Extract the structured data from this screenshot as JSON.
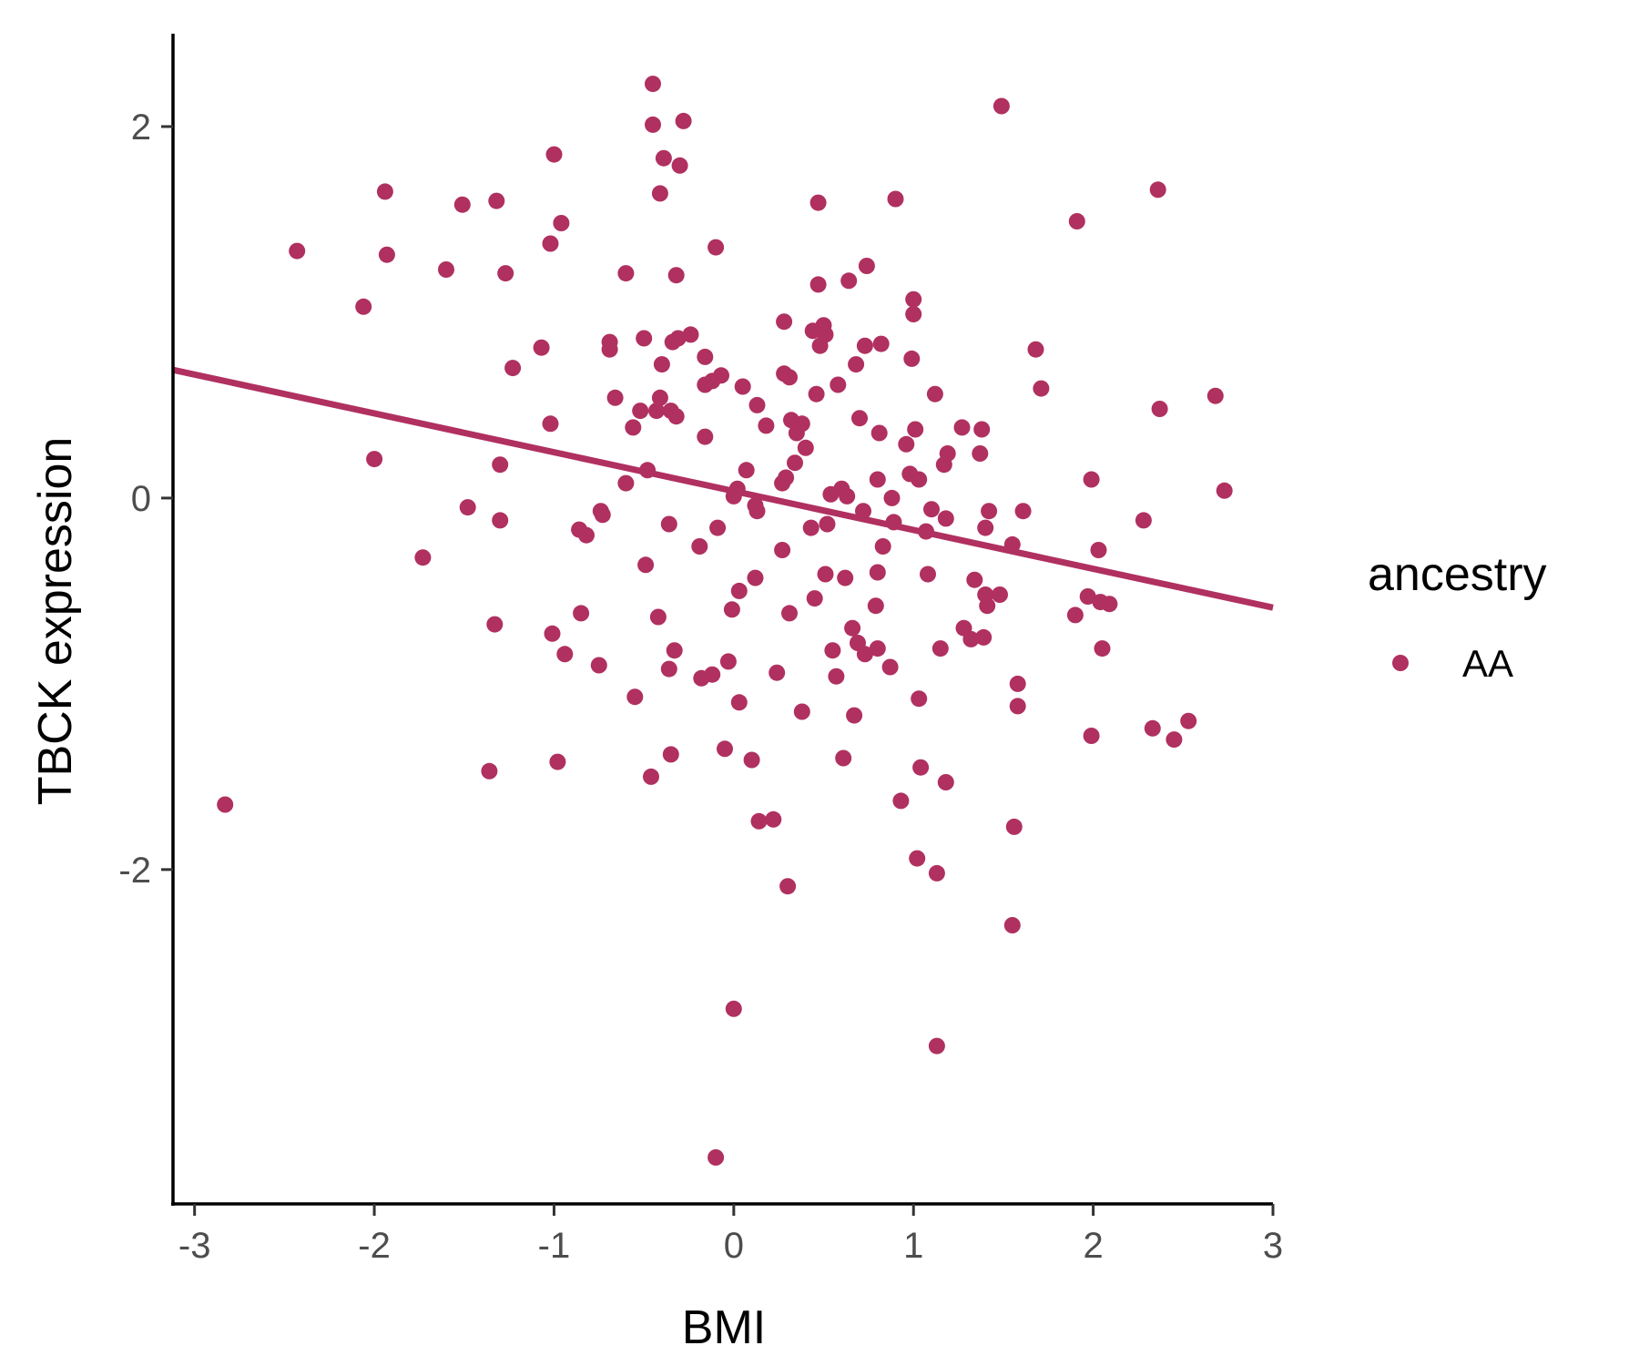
{
  "chart_data": {
    "type": "scatter",
    "xlabel": "BMI",
    "ylabel": "TBCK expression",
    "xlim": [
      -3.12,
      3.0
    ],
    "ylim": [
      -3.8,
      2.5
    ],
    "x_ticks": [
      -3,
      -2,
      -1,
      0,
      1,
      2,
      3
    ],
    "x_tick_labels": [
      "-3",
      "-2",
      "-1",
      "0",
      "1",
      "2",
      "3"
    ],
    "y_ticks": [
      -2,
      0,
      2
    ],
    "y_tick_labels": [
      "-2",
      "0",
      "2"
    ],
    "grid": false,
    "legend_position": "right",
    "point_color": "#b03060",
    "series": [
      {
        "name": "AA",
        "color": "#b03060",
        "points": [
          [
            -2.83,
            -1.65
          ],
          [
            -2.43,
            1.33
          ],
          [
            -2.06,
            1.03
          ],
          [
            -2.0,
            0.21
          ],
          [
            -1.94,
            1.65
          ],
          [
            -1.93,
            1.31
          ],
          [
            -1.73,
            -0.32
          ],
          [
            -1.6,
            1.23
          ],
          [
            -1.51,
            1.58
          ],
          [
            -1.48,
            -0.05
          ],
          [
            -1.36,
            -1.47
          ],
          [
            -1.33,
            -0.68
          ],
          [
            -1.32,
            1.6
          ],
          [
            -1.3,
            0.18
          ],
          [
            -1.3,
            -0.12
          ],
          [
            -1.27,
            1.21
          ],
          [
            -1.23,
            0.7
          ],
          [
            -1.07,
            0.81
          ],
          [
            -1.02,
            1.37
          ],
          [
            -1.02,
            0.4
          ],
          [
            -1.01,
            -0.73
          ],
          [
            -1.0,
            1.85
          ],
          [
            -0.98,
            -1.42
          ],
          [
            -0.96,
            1.48
          ],
          [
            -0.94,
            -0.84
          ],
          [
            -0.86,
            -0.17
          ],
          [
            -0.85,
            -0.62
          ],
          [
            -0.82,
            -0.2
          ],
          [
            -0.75,
            -0.9
          ],
          [
            -0.74,
            -0.07
          ],
          [
            -0.73,
            -0.09
          ],
          [
            -0.69,
            0.8
          ],
          [
            -0.69,
            0.84
          ],
          [
            -0.66,
            0.54
          ],
          [
            -0.6,
            1.21
          ],
          [
            -0.6,
            0.08
          ],
          [
            -0.56,
            0.38
          ],
          [
            -0.55,
            -1.07
          ],
          [
            -0.52,
            0.47
          ],
          [
            -0.5,
            0.86
          ],
          [
            -0.49,
            -0.36
          ],
          [
            -0.48,
            0.15
          ],
          [
            -0.46,
            -1.5
          ],
          [
            -0.45,
            2.23
          ],
          [
            -0.45,
            2.01
          ],
          [
            -0.43,
            0.47
          ],
          [
            -0.42,
            -0.64
          ],
          [
            -0.41,
            1.64
          ],
          [
            -0.41,
            0.54
          ],
          [
            -0.4,
            0.72
          ],
          [
            -0.39,
            1.83
          ],
          [
            -0.36,
            -0.14
          ],
          [
            -0.36,
            -0.92
          ],
          [
            -0.35,
            0.47
          ],
          [
            -0.35,
            -1.38
          ],
          [
            -0.34,
            0.84
          ],
          [
            -0.33,
            -0.82
          ],
          [
            -0.32,
            1.2
          ],
          [
            -0.32,
            0.44
          ],
          [
            -0.31,
            0.86
          ],
          [
            -0.3,
            1.79
          ],
          [
            -0.28,
            2.03
          ],
          [
            -0.24,
            0.88
          ],
          [
            -0.19,
            -0.26
          ],
          [
            -0.18,
            -0.97
          ],
          [
            -0.16,
            0.76
          ],
          [
            -0.16,
            0.61
          ],
          [
            -0.16,
            0.33
          ],
          [
            -0.12,
            0.63
          ],
          [
            -0.12,
            -0.95
          ],
          [
            -0.1,
            -3.55
          ],
          [
            -0.1,
            1.35
          ],
          [
            -0.09,
            -0.16
          ],
          [
            -0.07,
            0.66
          ],
          [
            -0.05,
            -1.35
          ],
          [
            -0.03,
            -0.88
          ],
          [
            -0.01,
            -0.6
          ],
          [
            -0.0,
            -2.75
          ],
          [
            0.0,
            0.01
          ],
          [
            0.02,
            0.05
          ],
          [
            0.03,
            -0.5
          ],
          [
            0.03,
            -1.1
          ],
          [
            0.05,
            0.6
          ],
          [
            0.07,
            0.15
          ],
          [
            0.1,
            -1.41
          ],
          [
            0.12,
            -0.04
          ],
          [
            0.12,
            -0.43
          ],
          [
            0.13,
            0.5
          ],
          [
            0.13,
            -0.07
          ],
          [
            0.14,
            -1.74
          ],
          [
            0.18,
            0.39
          ],
          [
            0.22,
            -1.73
          ],
          [
            0.24,
            -0.94
          ],
          [
            0.27,
            -0.28
          ],
          [
            0.27,
            0.08
          ],
          [
            0.28,
            0.67
          ],
          [
            0.28,
            0.95
          ],
          [
            0.29,
            0.11
          ],
          [
            0.3,
            -2.09
          ],
          [
            0.31,
            0.65
          ],
          [
            0.31,
            -0.62
          ],
          [
            0.32,
            0.42
          ],
          [
            0.34,
            0.19
          ],
          [
            0.35,
            0.35
          ],
          [
            0.38,
            0.4
          ],
          [
            0.38,
            -1.15
          ],
          [
            0.4,
            0.27
          ],
          [
            0.43,
            -0.16
          ],
          [
            0.44,
            0.9
          ],
          [
            0.45,
            -0.54
          ],
          [
            0.46,
            0.56
          ],
          [
            0.47,
            1.15
          ],
          [
            0.47,
            1.59
          ],
          [
            0.48,
            0.82
          ],
          [
            0.5,
            0.93
          ],
          [
            0.51,
            -0.41
          ],
          [
            0.51,
            0.88
          ],
          [
            0.52,
            -0.14
          ],
          [
            0.54,
            0.02
          ],
          [
            0.55,
            -0.82
          ],
          [
            0.57,
            -0.96
          ],
          [
            0.58,
            0.61
          ],
          [
            0.6,
            0.05
          ],
          [
            0.61,
            -1.4
          ],
          [
            0.62,
            -0.43
          ],
          [
            0.63,
            0.01
          ],
          [
            0.64,
            1.17
          ],
          [
            0.66,
            -0.7
          ],
          [
            0.67,
            -1.17
          ],
          [
            0.68,
            0.72
          ],
          [
            0.69,
            -0.78
          ],
          [
            0.7,
            0.43
          ],
          [
            0.72,
            -0.07
          ],
          [
            0.73,
            0.82
          ],
          [
            0.73,
            -0.84
          ],
          [
            0.74,
            1.25
          ],
          [
            0.79,
            -0.58
          ],
          [
            0.8,
            -0.81
          ],
          [
            0.8,
            -0.4
          ],
          [
            0.8,
            0.1
          ],
          [
            0.81,
            0.35
          ],
          [
            0.82,
            0.83
          ],
          [
            0.83,
            -0.26
          ],
          [
            0.87,
            -0.91
          ],
          [
            0.88,
            0.0
          ],
          [
            0.89,
            -0.13
          ],
          [
            0.9,
            1.61
          ],
          [
            0.93,
            -1.63
          ],
          [
            0.96,
            0.29
          ],
          [
            0.98,
            0.13
          ],
          [
            0.99,
            0.75
          ],
          [
            1.0,
            0.99
          ],
          [
            1.0,
            1.07
          ],
          [
            1.01,
            0.37
          ],
          [
            1.02,
            -1.94
          ],
          [
            1.03,
            0.1
          ],
          [
            1.03,
            -1.08
          ],
          [
            1.04,
            -1.45
          ],
          [
            1.07,
            -0.18
          ],
          [
            1.08,
            -0.41
          ],
          [
            1.1,
            -0.06
          ],
          [
            1.12,
            0.56
          ],
          [
            1.13,
            -2.95
          ],
          [
            1.13,
            -2.02
          ],
          [
            1.15,
            -0.81
          ],
          [
            1.17,
            0.18
          ],
          [
            1.18,
            -0.11
          ],
          [
            1.18,
            -1.53
          ],
          [
            1.19,
            0.24
          ],
          [
            1.27,
            0.38
          ],
          [
            1.28,
            -0.7
          ],
          [
            1.32,
            -0.76
          ],
          [
            1.34,
            -0.44
          ],
          [
            1.37,
            0.24
          ],
          [
            1.38,
            0.37
          ],
          [
            1.39,
            -0.75
          ],
          [
            1.4,
            -0.16
          ],
          [
            1.4,
            -0.52
          ],
          [
            1.41,
            -0.58
          ],
          [
            1.42,
            -0.07
          ],
          [
            1.48,
            -0.52
          ],
          [
            1.49,
            2.11
          ],
          [
            1.55,
            -0.25
          ],
          [
            1.55,
            -2.3
          ],
          [
            1.56,
            -1.77
          ],
          [
            1.58,
            -1.12
          ],
          [
            1.58,
            -1.0
          ],
          [
            1.61,
            -0.07
          ],
          [
            1.68,
            0.8
          ],
          [
            1.71,
            0.59
          ],
          [
            1.9,
            -0.63
          ],
          [
            1.91,
            1.49
          ],
          [
            1.97,
            -0.53
          ],
          [
            1.99,
            0.1
          ],
          [
            1.99,
            -1.28
          ],
          [
            2.03,
            -0.28
          ],
          [
            2.04,
            -0.56
          ],
          [
            2.05,
            -0.81
          ],
          [
            2.09,
            -0.57
          ],
          [
            2.28,
            -0.12
          ],
          [
            2.33,
            -1.24
          ],
          [
            2.36,
            1.66
          ],
          [
            2.37,
            0.48
          ],
          [
            2.45,
            -1.3
          ],
          [
            2.53,
            -1.2
          ],
          [
            2.68,
            0.55
          ],
          [
            2.73,
            0.04
          ]
        ]
      }
    ],
    "trend_line": {
      "type": "linear",
      "x": [
        -3.12,
        3.0
      ],
      "y": [
        0.69,
        -0.59
      ]
    }
  },
  "legend": {
    "title": "ancestry",
    "items": [
      {
        "label": "AA",
        "color": "#b03060"
      }
    ]
  }
}
